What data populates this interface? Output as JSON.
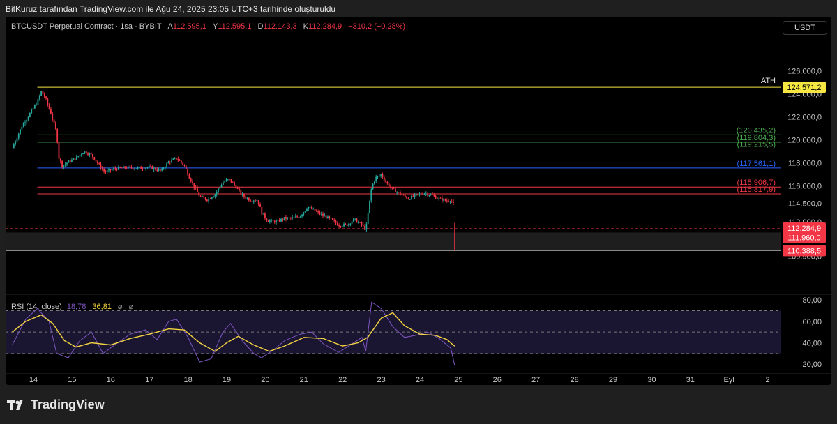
{
  "header_note": "BitKuruz tarafından TradingView.com ile Ağu 24, 2025 23:05 UTC+3 tarihinde oluşturuldu",
  "legend": {
    "symbol": "BTCUSDT Perpetual Contract · 1sa · BYBIT",
    "open_label": "A",
    "open": "112.595,1",
    "high_label": "Y",
    "high": "112.595,1",
    "low_label": "D",
    "low": "112.143,3",
    "close_label": "K",
    "close": "112.284,9",
    "change": "−310,2 (−0,28%)"
  },
  "currency": "USDT",
  "rsi_legend": {
    "name": "RSI (14, close)",
    "rsi": "18,78",
    "ma": "36,81",
    "sym1": "⌀",
    "sym2": "⌀"
  },
  "footer": {
    "brand": "TradingView"
  },
  "colors": {
    "up": "#26a69a",
    "down": "#f23645",
    "ath": "#f5e642",
    "green": "#4caf50",
    "blue": "#2962ff",
    "red": "#f23645"
  },
  "chart_data": [
    {
      "type": "candlestick",
      "x_ticks": [
        "14",
        "15",
        "16",
        "17",
        "18",
        "19",
        "20",
        "21",
        "22",
        "23",
        "24",
        "25",
        "26",
        "27",
        "28",
        "29",
        "30",
        "31",
        "Eyl",
        "2"
      ],
      "y_ticks": [
        "126.000,0",
        "124.000,0",
        "122.000,0",
        "120.000,0",
        "118.000,0",
        "116.000,0",
        "114.500,0",
        "112.900,0",
        "109.900,0"
      ],
      "y_tick_values": [
        126000,
        124000,
        122000,
        120000,
        118000,
        116000,
        114500,
        112900,
        109900
      ],
      "ylim": [
        109600,
        127300
      ],
      "price_path": [
        [
          13.45,
          119300
        ],
        [
          13.7,
          121200
        ],
        [
          13.95,
          122500
        ],
        [
          14.1,
          123300
        ],
        [
          14.2,
          124200
        ],
        [
          14.3,
          123700
        ],
        [
          14.45,
          122300
        ],
        [
          14.6,
          120600
        ],
        [
          14.65,
          118500
        ],
        [
          14.75,
          117700
        ],
        [
          14.9,
          118100
        ],
        [
          15.1,
          118400
        ],
        [
          15.3,
          119000
        ],
        [
          15.5,
          118700
        ],
        [
          15.7,
          117800
        ],
        [
          15.85,
          117200
        ],
        [
          16.1,
          117500
        ],
        [
          16.4,
          117600
        ],
        [
          16.7,
          117550
        ],
        [
          17.0,
          117650
        ],
        [
          17.3,
          117300
        ],
        [
          17.5,
          118100
        ],
        [
          17.7,
          118400
        ],
        [
          17.9,
          117800
        ],
        [
          18.1,
          116300
        ],
        [
          18.3,
          115100
        ],
        [
          18.5,
          114800
        ],
        [
          18.7,
          115300
        ],
        [
          18.9,
          116300
        ],
        [
          19.05,
          116600
        ],
        [
          19.2,
          116100
        ],
        [
          19.4,
          115200
        ],
        [
          19.6,
          114800
        ],
        [
          19.8,
          114800
        ],
        [
          19.9,
          113700
        ],
        [
          20.05,
          113000
        ],
        [
          20.3,
          112900
        ],
        [
          20.5,
          113200
        ],
        [
          20.7,
          113200
        ],
        [
          20.9,
          113400
        ],
        [
          21.1,
          114200
        ],
        [
          21.3,
          113800
        ],
        [
          21.5,
          113400
        ],
        [
          21.7,
          113100
        ],
        [
          21.9,
          112600
        ],
        [
          22.1,
          112600
        ],
        [
          22.3,
          113100
        ],
        [
          22.5,
          112600
        ],
        [
          22.6,
          112200
        ],
        [
          22.75,
          115900
        ],
        [
          22.85,
          116700
        ],
        [
          23.0,
          117000
        ],
        [
          23.15,
          116200
        ],
        [
          23.3,
          115700
        ],
        [
          23.5,
          115300
        ],
        [
          23.7,
          114900
        ],
        [
          23.9,
          115200
        ],
        [
          24.1,
          115400
        ],
        [
          24.3,
          115200
        ],
        [
          24.5,
          114900
        ],
        [
          24.7,
          114700
        ],
        [
          24.8,
          114800
        ],
        [
          24.87,
          114400
        ],
        [
          24.9,
          112300
        ]
      ],
      "horizontal_lines": [
        {
          "value": 124571.2,
          "label": "124.571,2",
          "text": "ATH",
          "color": "#f5e642"
        },
        {
          "value": 120435.2,
          "label": "(120.435,2)",
          "color": "#4caf50"
        },
        {
          "value": 119804.3,
          "label": "(119.804,3)",
          "color": "#4caf50"
        },
        {
          "value": 119215.5,
          "label": "(119.215,5)",
          "color": "#4caf50"
        },
        {
          "value": 117561.1,
          "label": "(117.561,1)",
          "color": "#2962ff"
        },
        {
          "value": 115906.7,
          "label": "(115.906,7)",
          "color": "#f23645"
        },
        {
          "value": 115317.9,
          "label": "(115.317,9)",
          "color": "#f23645"
        }
      ],
      "current_price": {
        "value": 112284.9,
        "label": "112.284,9"
      },
      "zone": {
        "top": 111960.0,
        "bottom": 110388.5,
        "top_label": "111.960,0",
        "bottom_label": "110.388,5"
      }
    },
    {
      "type": "line",
      "title": "RSI (14, close)",
      "y_ticks": [
        "80,00",
        "60,00",
        "40,00",
        "20,00"
      ],
      "y_tick_values": [
        80,
        60,
        40,
        20
      ],
      "ylim": [
        11,
        84
      ],
      "levels": [
        70,
        50,
        30
      ],
      "series": [
        {
          "name": "RSI",
          "color": "#7e57c2",
          "points": [
            [
              13.45,
              38
            ],
            [
              13.8,
              62
            ],
            [
              14.1,
              72
            ],
            [
              14.4,
              60
            ],
            [
              14.6,
              30
            ],
            [
              14.9,
              26
            ],
            [
              15.2,
              42
            ],
            [
              15.5,
              50
            ],
            [
              15.8,
              30
            ],
            [
              16.1,
              38
            ],
            [
              16.5,
              48
            ],
            [
              16.9,
              52
            ],
            [
              17.2,
              43
            ],
            [
              17.5,
              60
            ],
            [
              17.7,
              62
            ],
            [
              18.0,
              45
            ],
            [
              18.3,
              22
            ],
            [
              18.6,
              25
            ],
            [
              18.9,
              50
            ],
            [
              19.1,
              58
            ],
            [
              19.4,
              42
            ],
            [
              19.7,
              30
            ],
            [
              19.9,
              26
            ],
            [
              20.2,
              33
            ],
            [
              20.5,
              42
            ],
            [
              20.9,
              48
            ],
            [
              21.2,
              50
            ],
            [
              21.5,
              39
            ],
            [
              21.9,
              31
            ],
            [
              22.2,
              38
            ],
            [
              22.5,
              45
            ],
            [
              22.6,
              32
            ],
            [
              22.75,
              78
            ],
            [
              23.0,
              72
            ],
            [
              23.3,
              55
            ],
            [
              23.6,
              45
            ],
            [
              23.9,
              47
            ],
            [
              24.2,
              50
            ],
            [
              24.5,
              44
            ],
            [
              24.8,
              35
            ],
            [
              24.9,
              18.78
            ]
          ]
        },
        {
          "name": "MA",
          "color": "#f5d442",
          "points": [
            [
              13.45,
              50
            ],
            [
              13.8,
              60
            ],
            [
              14.2,
              66
            ],
            [
              14.5,
              58
            ],
            [
              14.8,
              42
            ],
            [
              15.1,
              36
            ],
            [
              15.5,
              40
            ],
            [
              16.0,
              38
            ],
            [
              16.5,
              44
            ],
            [
              17.0,
              48
            ],
            [
              17.5,
              53
            ],
            [
              17.9,
              52
            ],
            [
              18.3,
              40
            ],
            [
              18.7,
              32
            ],
            [
              19.0,
              40
            ],
            [
              19.3,
              46
            ],
            [
              19.7,
              38
            ],
            [
              20.1,
              32
            ],
            [
              20.5,
              37
            ],
            [
              21.0,
              45
            ],
            [
              21.5,
              44
            ],
            [
              22.0,
              37
            ],
            [
              22.4,
              40
            ],
            [
              22.65,
              45
            ],
            [
              23.0,
              63
            ],
            [
              23.3,
              68
            ],
            [
              23.6,
              56
            ],
            [
              24.0,
              48
            ],
            [
              24.4,
              47
            ],
            [
              24.7,
              43
            ],
            [
              24.9,
              36.81
            ]
          ]
        }
      ]
    }
  ]
}
